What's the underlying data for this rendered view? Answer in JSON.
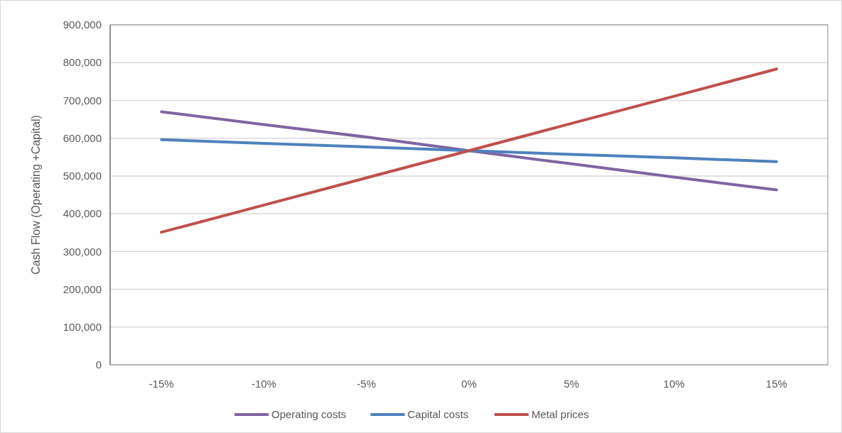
{
  "chart_data": {
    "type": "line",
    "ylabel": "Cash Flow (Operating +Capital)",
    "categories": [
      "-15%",
      "-10%",
      "-5%",
      "0%",
      "5%",
      "10%",
      "15%"
    ],
    "series": [
      {
        "name": "Operating costs",
        "color": "#8064a2",
        "values": [
          670000,
          636000,
          603000,
          567000,
          532000,
          497000,
          463000
        ]
      },
      {
        "name": "Capital costs",
        "color": "#4f81bd",
        "values": [
          596000,
          586000,
          577000,
          567000,
          557000,
          548000,
          538000
        ]
      },
      {
        "name": "Metal prices",
        "color": "#c0504d",
        "values": [
          351000,
          423000,
          495000,
          567000,
          639000,
          711000,
          783000
        ]
      }
    ],
    "ylim": [
      0,
      900000
    ],
    "yticks": [
      {
        "value": 0,
        "label": "0"
      },
      {
        "value": 100000,
        "label": "100,000"
      },
      {
        "value": 200000,
        "label": "200,000"
      },
      {
        "value": 300000,
        "label": "300,000"
      },
      {
        "value": 400000,
        "label": "400,000"
      },
      {
        "value": 500000,
        "label": "500,000"
      },
      {
        "value": 600000,
        "label": "600,000"
      },
      {
        "value": 700000,
        "label": "700,000"
      },
      {
        "value": 800000,
        "label": "800,000"
      },
      {
        "value": 900000,
        "label": "900,000"
      }
    ],
    "grid": "y",
    "legend": "bottom",
    "marker": "none",
    "line_style": "solid"
  }
}
